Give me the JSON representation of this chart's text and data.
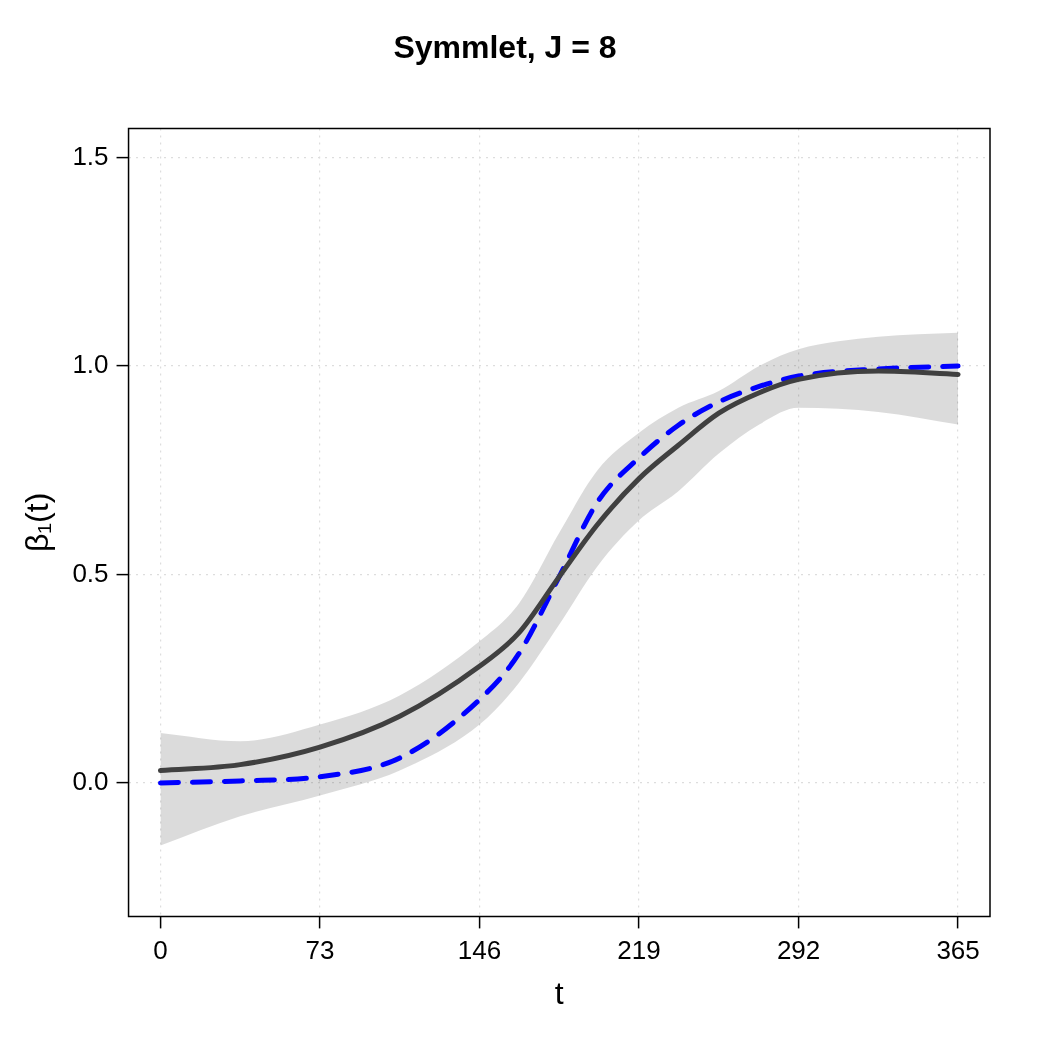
{
  "chart_data": {
    "type": "line",
    "title": "Symmlet, J = 8",
    "xlabel": "t",
    "ylabel": "β₁(t)",
    "x": [
      0,
      36.5,
      73,
      109.5,
      146,
      164,
      182.5,
      200,
      219,
      237,
      255.5,
      274,
      292,
      328.5,
      365
    ],
    "series": [
      {
        "color": "#404040",
        "line_style": "solid",
        "values": [
          0.03,
          0.044,
          0.086,
          0.16,
          0.28,
          0.36,
          0.495,
          0.62,
          0.73,
          0.81,
          0.887,
          0.936,
          0.968,
          0.988,
          0.98
        ],
        "lower": [
          -0.15,
          -0.08,
          -0.03,
          0.03,
          0.14,
          0.24,
          0.38,
          0.52,
          0.63,
          0.7,
          0.79,
          0.86,
          0.9,
          0.89,
          0.86
        ],
        "upper": [
          0.12,
          0.1,
          0.14,
          0.21,
          0.34,
          0.43,
          0.6,
          0.75,
          0.84,
          0.9,
          0.94,
          1.0,
          1.04,
          1.07,
          1.08
        ]
      },
      {
        "color": "#0000ff",
        "line_style": "dashed",
        "values": [
          0.0,
          0.005,
          0.015,
          0.06,
          0.2,
          0.31,
          0.495,
          0.674,
          0.78,
          0.858,
          0.914,
          0.951,
          0.976,
          0.993,
          1.0
        ]
      }
    ],
    "xlim": [
      -14.6,
      379.6
    ],
    "xticks": [
      0,
      73,
      146,
      219,
      292,
      365
    ],
    "ylim": [
      -0.32,
      1.57
    ],
    "yticks": [
      {
        "value": 0,
        "label": "0.0"
      },
      {
        "value": 0.5,
        "label": "0.5"
      },
      {
        "value": 1,
        "label": "1.0"
      },
      {
        "value": 1.5,
        "label": "1.5"
      }
    ],
    "grid": true,
    "legend": false,
    "marker": "none"
  }
}
